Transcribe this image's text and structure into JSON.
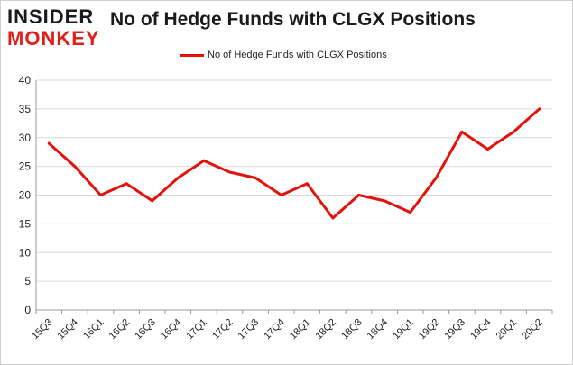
{
  "logo": {
    "line1": "INSIDER",
    "line2": "MONKEY"
  },
  "header": {
    "title": "No of Hedge Funds with CLGX Positions"
  },
  "colors": {
    "line": "#e3120b",
    "grid": "#d9d9d9",
    "axis": "#9a9a9a",
    "text": "#222222"
  },
  "chart_data": {
    "type": "line",
    "title": "No of Hedge Funds with CLGX Positions",
    "xlabel": "",
    "ylabel": "",
    "categories": [
      "15Q3",
      "15Q4",
      "16Q1",
      "16Q2",
      "16Q3",
      "16Q4",
      "17Q1",
      "17Q2",
      "17Q3",
      "17Q4",
      "18Q1",
      "18Q2",
      "18Q3",
      "18Q4",
      "19Q1",
      "19Q2",
      "19Q3",
      "19Q4",
      "20Q1",
      "20Q2"
    ],
    "series": [
      {
        "name": "No of Hedge Funds with CLGX Positions",
        "values": [
          29,
          25,
          20,
          22,
          19,
          23,
          26,
          24,
          23,
          20,
          22,
          16,
          20,
          19,
          17,
          23,
          31,
          28,
          31,
          35
        ]
      }
    ],
    "ylim": [
      0,
      40
    ],
    "yticks": [
      0,
      5,
      10,
      15,
      20,
      25,
      30,
      35,
      40
    ],
    "grid": true,
    "legend": "top-center"
  }
}
